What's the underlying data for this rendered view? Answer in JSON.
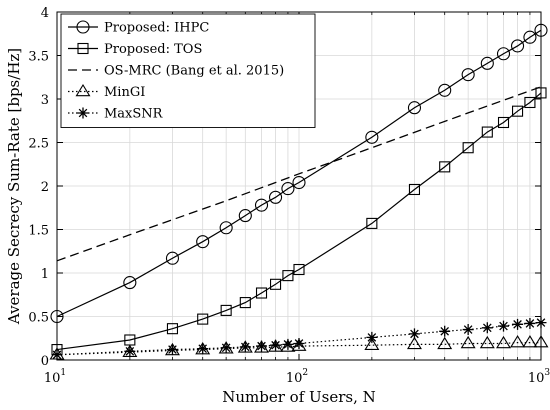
{
  "chart_data": {
    "type": "line",
    "xscale": "log",
    "xlim": [
      10,
      1000
    ],
    "ylim": [
      0,
      4
    ],
    "grid": true,
    "legend_position": "top-left",
    "title": "",
    "xlabel": "Number of Users, N",
    "ylabel": "Average Secrecy Sum-Rate [bps/Hz]",
    "x_ticks": [
      10,
      100,
      1000
    ],
    "x_tick_labels": [
      {
        "base": "10",
        "exp": "1"
      },
      {
        "base": "10",
        "exp": "2"
      },
      {
        "base": "10",
        "exp": "3"
      }
    ],
    "y_ticks": [
      0,
      0.5,
      1,
      1.5,
      2,
      2.5,
      3,
      3.5,
      4
    ],
    "y_tick_labels": [
      "0",
      "0.5",
      "1",
      "1.5",
      "2",
      "2.5",
      "3",
      "3.5",
      "4"
    ],
    "series": [
      {
        "name": "Proposed: IHPC",
        "marker": "circle",
        "line": "solid",
        "x": [
          10,
          20,
          30,
          40,
          50,
          60,
          70,
          80,
          90,
          100,
          200,
          300,
          400,
          500,
          600,
          700,
          800,
          900,
          1000
        ],
        "y": [
          0.5,
          0.89,
          1.17,
          1.36,
          1.52,
          1.66,
          1.78,
          1.87,
          1.97,
          2.04,
          2.56,
          2.9,
          3.1,
          3.28,
          3.41,
          3.52,
          3.61,
          3.71,
          3.79
        ]
      },
      {
        "name": "Proposed: TOS",
        "marker": "square",
        "line": "solid",
        "x": [
          10,
          20,
          30,
          40,
          50,
          60,
          70,
          80,
          90,
          100,
          200,
          300,
          400,
          500,
          600,
          700,
          800,
          900,
          1000
        ],
        "y": [
          0.12,
          0.23,
          0.36,
          0.47,
          0.57,
          0.66,
          0.77,
          0.87,
          0.97,
          1.04,
          1.57,
          1.96,
          2.22,
          2.44,
          2.62,
          2.73,
          2.86,
          2.96,
          3.07
        ]
      },
      {
        "name": "OS-MRC (Bang et al. 2015)",
        "marker": "none",
        "line": "dashed",
        "x": [
          10,
          20,
          50,
          100,
          200,
          500,
          1000
        ],
        "y": [
          1.14,
          1.44,
          1.83,
          2.14,
          2.44,
          2.84,
          3.14
        ]
      },
      {
        "name": "MinGI",
        "marker": "triangle",
        "line": "dotted",
        "x": [
          10,
          20,
          30,
          40,
          50,
          60,
          70,
          80,
          90,
          100,
          200,
          300,
          400,
          500,
          600,
          700,
          800,
          900,
          1000
        ],
        "y": [
          0.06,
          0.09,
          0.11,
          0.12,
          0.13,
          0.14,
          0.14,
          0.15,
          0.15,
          0.16,
          0.17,
          0.18,
          0.18,
          0.19,
          0.19,
          0.19,
          0.2,
          0.2,
          0.2
        ]
      },
      {
        "name": "MaxSNR",
        "marker": "asterisk",
        "line": "dotted",
        "x": [
          10,
          20,
          30,
          40,
          50,
          60,
          70,
          80,
          90,
          100,
          200,
          300,
          400,
          500,
          600,
          700,
          800,
          900,
          1000
        ],
        "y": [
          0.06,
          0.1,
          0.12,
          0.13,
          0.14,
          0.15,
          0.16,
          0.17,
          0.18,
          0.19,
          0.26,
          0.3,
          0.33,
          0.35,
          0.37,
          0.39,
          0.41,
          0.42,
          0.43
        ]
      }
    ]
  }
}
